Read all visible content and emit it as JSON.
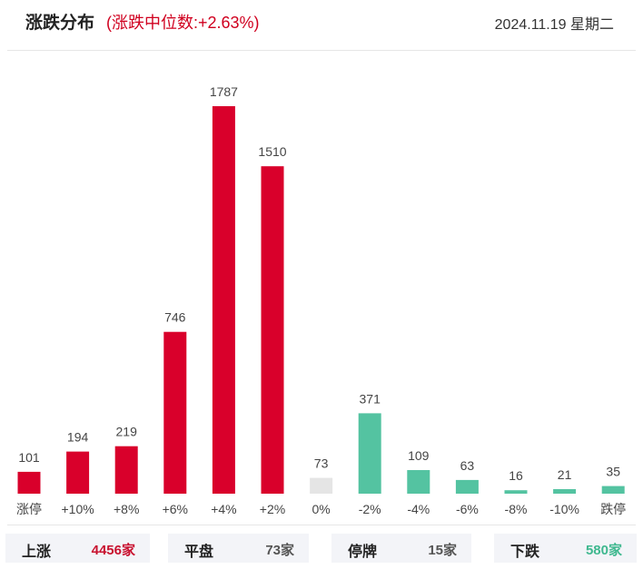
{
  "header": {
    "title": "涨跌分布",
    "median_text": "(涨跌中位数:+2.63%)",
    "date": "2024.11.19 星期二"
  },
  "colors": {
    "up": "#d9002b",
    "flat": "#e5e5e5",
    "down": "#54c3a1",
    "up_text": "#c8102e",
    "flat_text": "#555555",
    "down_text": "#3fb88f"
  },
  "chart_data": {
    "type": "bar",
    "title": "",
    "xlabel": "",
    "ylabel": "",
    "categories": [
      "涨停",
      "+10%",
      "+8%",
      "+6%",
      "+4%",
      "+2%",
      "0%",
      "-2%",
      "-4%",
      "-6%",
      "-8%",
      "-10%",
      "跌停"
    ],
    "values": [
      101,
      194,
      219,
      746,
      1787,
      1510,
      73,
      371,
      109,
      63,
      16,
      21,
      35
    ],
    "bar_colors": [
      "up",
      "up",
      "up",
      "up",
      "up",
      "up",
      "flat",
      "down",
      "down",
      "down",
      "down",
      "down",
      "down"
    ],
    "ylim": [
      0,
      1787
    ],
    "grid": false,
    "legend": "none"
  },
  "summary": [
    {
      "label": "上涨",
      "value": "4456家",
      "color": "up_text"
    },
    {
      "label": "平盘",
      "value": "73家",
      "color": "flat_text"
    },
    {
      "label": "停牌",
      "value": "15家",
      "color": "flat_text"
    },
    {
      "label": "下跌",
      "value": "580家",
      "color": "down_text"
    }
  ]
}
